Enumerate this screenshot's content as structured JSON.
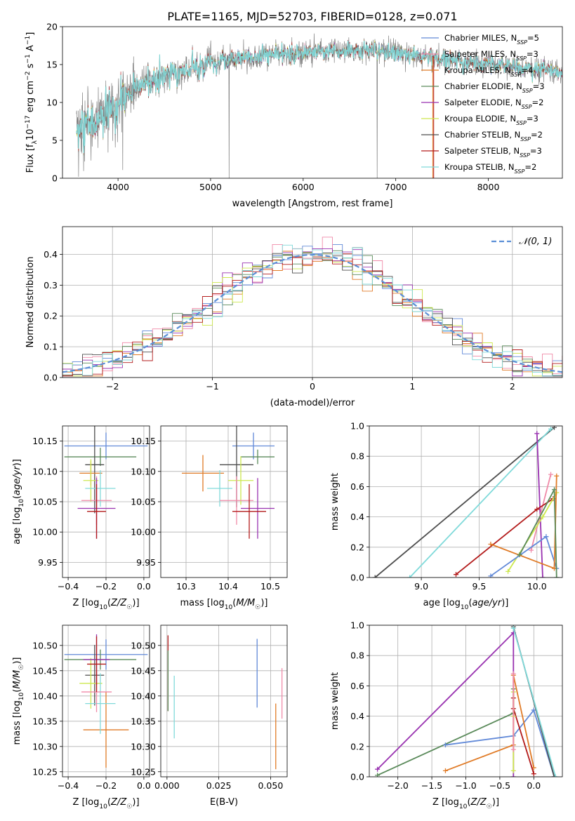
{
  "figure": {
    "title": "PLATE=1165, MJD=52703, FIBERID=0128, z=0.071"
  },
  "chart_data": [
    {
      "id": "spectrum",
      "type": "line",
      "title": "PLATE=1165, MJD=52703, FIBERID=0128, z=0.071",
      "xlabel": "wavelength [Angstrom, rest frame]",
      "ylabel": "Flux [f_λ 10^-17 erg cm^-2 s^-1 A^-1]",
      "xlim": [
        3400,
        8800
      ],
      "ylim": [
        0,
        20
      ],
      "xticks": [
        4000,
        5000,
        6000,
        7000,
        8000
      ],
      "yticks": [
        0,
        5,
        10,
        15,
        20
      ],
      "grid": false,
      "legend_position": "top-right",
      "continuum": {
        "x": [
          3550,
          3700,
          3850,
          3950,
          4100,
          4300,
          4500,
          4800,
          5000,
          5300,
          5600,
          6000,
          6400,
          6800,
          7200,
          7500,
          7800,
          8200,
          8500,
          8800
        ],
        "y": [
          6.5,
          7.5,
          8.0,
          9.0,
          11.0,
          12.5,
          13.5,
          14.5,
          15.2,
          15.8,
          16.2,
          16.6,
          16.8,
          16.7,
          16.2,
          15.8,
          15.3,
          14.8,
          14.4,
          14.0
        ]
      },
      "series": [
        {
          "label_parts": [
            "Chabrier MILES, N",
            "SSP",
            "=5"
          ],
          "color": "#6189d8"
        },
        {
          "label_parts": [
            "Salpeter MILES, N",
            "SSP",
            "=3"
          ],
          "color": "#f08aa8"
        },
        {
          "label_parts": [
            "Kroupa MILES, N",
            "SSP",
            "=4"
          ],
          "color": "#e07b27"
        },
        {
          "label_parts": [
            "Chabrier ELODIE, N",
            "SSP",
            "=3"
          ],
          "color": "#5a8a5a"
        },
        {
          "label_parts": [
            "Salpeter ELODIE, N",
            "SSP",
            "=2"
          ],
          "color": "#9932b0"
        },
        {
          "label_parts": [
            "Kroupa ELODIE, N",
            "SSP",
            "=3"
          ],
          "color": "#cde84f"
        },
        {
          "label_parts": [
            "Chabrier STELIB, N",
            "SSP",
            "=2"
          ],
          "color": "#4d4d4d"
        },
        {
          "label_parts": [
            "Salpeter STELIB, N",
            "SSP",
            "=3"
          ],
          "color": "#b31b1b"
        },
        {
          "label_parts": [
            "Kroupa STELIB, N",
            "SSP",
            "=2"
          ],
          "color": "#80dada"
        }
      ]
    },
    {
      "id": "residuals",
      "type": "line",
      "xlabel": "(data-model)/error",
      "ylabel": "Normed distribution",
      "xlim": [
        -2.5,
        2.5
      ],
      "ylim": [
        0,
        0.49
      ],
      "xticks": [
        -2,
        -1,
        0,
        1,
        2
      ],
      "yticks": [
        0.0,
        0.1,
        0.2,
        0.3,
        0.4
      ],
      "grid": true,
      "legend_position": "top-right",
      "legend_label": "𝒩(0, 1)",
      "reference_curve": {
        "name": "𝒩(0, 1)",
        "mean": 0,
        "sigma": 1,
        "color": "#5b8fd6"
      },
      "bin_width": 0.1
    },
    {
      "id": "age-vs-Z",
      "type": "scatter",
      "xlabel": "Z [log10(Z/Z☉)]",
      "ylabel": "age [log10(age/yr)]",
      "xlim": [
        -0.43,
        0.03
      ],
      "ylim": [
        9.925,
        10.175
      ],
      "xticks": [
        -0.4,
        -0.2,
        0.0
      ],
      "yticks": [
        9.95,
        10.0,
        10.05,
        10.1,
        10.15
      ],
      "grid": true,
      "points": [
        {
          "x": -0.2,
          "y": 10.142,
          "xerr": 0.22,
          "yerr": 0.022,
          "color": "#6189d8"
        },
        {
          "x": -0.23,
          "y": 10.124,
          "xerr": 0.19,
          "yerr": 0.015,
          "color": "#5a8a5a"
        },
        {
          "x": -0.26,
          "y": 10.111,
          "xerr": 0.05,
          "yerr": 0.08,
          "color": "#4d4d4d"
        },
        {
          "x": -0.28,
          "y": 10.097,
          "xerr": 0.06,
          "yerr": 0.02,
          "color": "#e07b27"
        },
        {
          "x": -0.28,
          "y": 10.085,
          "xerr": 0.04,
          "yerr": 0.035,
          "color": "#cde84f"
        },
        {
          "x": -0.23,
          "y": 10.072,
          "xerr": 0.08,
          "yerr": 0.03,
          "color": "#80dada"
        },
        {
          "x": -0.25,
          "y": 10.052,
          "xerr": 0.08,
          "yerr": 0.04,
          "color": "#f08aa8"
        },
        {
          "x": -0.25,
          "y": 10.039,
          "xerr": 0.1,
          "yerr": 0.05,
          "color": "#9932b0"
        },
        {
          "x": -0.25,
          "y": 10.034,
          "xerr": 0.05,
          "yerr": 0.045,
          "color": "#b31b1b"
        }
      ]
    },
    {
      "id": "age-vs-mass",
      "type": "scatter",
      "xlabel": "mass [log10(M/M☉)]",
      "ylabel": "",
      "xlim": [
        10.24,
        10.54
      ],
      "ylim": [
        9.925,
        10.175
      ],
      "xticks": [
        10.3,
        10.4,
        10.5
      ],
      "yticks": [
        9.95,
        10.0,
        10.05,
        10.1,
        10.15
      ],
      "grid": true,
      "points": [
        {
          "x": 10.46,
          "y": 10.142,
          "xerr": 0.05,
          "yerr": 0.022,
          "color": "#6189d8"
        },
        {
          "x": 10.47,
          "y": 10.124,
          "xerr": 0.04,
          "yerr": 0.012,
          "color": "#5a8a5a"
        },
        {
          "x": 10.42,
          "y": 10.111,
          "xerr": 0.04,
          "yerr": 0.07,
          "color": "#4d4d4d"
        },
        {
          "x": 10.34,
          "y": 10.097,
          "xerr": 0.05,
          "yerr": 0.03,
          "color": "#e07b27"
        },
        {
          "x": 10.43,
          "y": 10.085,
          "xerr": 0.03,
          "yerr": 0.04,
          "color": "#cde84f"
        },
        {
          "x": 10.38,
          "y": 10.072,
          "xerr": 0.03,
          "yerr": 0.03,
          "color": "#80dada"
        },
        {
          "x": 10.42,
          "y": 10.052,
          "xerr": 0.04,
          "yerr": 0.04,
          "color": "#f08aa8"
        },
        {
          "x": 10.47,
          "y": 10.039,
          "xerr": 0.04,
          "yerr": 0.05,
          "color": "#9932b0"
        },
        {
          "x": 10.45,
          "y": 10.034,
          "xerr": 0.04,
          "yerr": 0.045,
          "color": "#b31b1b"
        }
      ]
    },
    {
      "id": "mass-weight-vs-age",
      "type": "line",
      "xlabel": "age [log10(age/yr)]",
      "ylabel": "mass weight",
      "xlim": [
        8.55,
        10.22
      ],
      "ylim": [
        0,
        1
      ],
      "xticks": [
        9.0,
        9.5,
        10.0
      ],
      "yticks": [
        0.0,
        0.2,
        0.4,
        0.6,
        0.8,
        1.0
      ],
      "grid": true,
      "series": [
        {
          "color": "#4d4d4d",
          "x": [
            8.6,
            10.15
          ],
          "y": [
            0.0,
            0.99
          ]
        },
        {
          "color": "#80dada",
          "x": [
            8.9,
            10.12
          ],
          "y": [
            0.0,
            0.98
          ]
        },
        {
          "color": "#9932b0",
          "x": [
            10.0,
            10.05
          ],
          "y": [
            0.95,
            0.0
          ]
        },
        {
          "color": "#f08aa8",
          "x": [
            9.95,
            10.12
          ],
          "y": [
            0.18,
            0.68
          ]
        },
        {
          "color": "#b31b1b",
          "x": [
            9.3,
            10.0,
            10.14
          ],
          "y": [
            0.02,
            0.45,
            0.52
          ]
        },
        {
          "color": "#cde84f",
          "x": [
            9.75,
            10.05,
            10.17
          ],
          "y": [
            0.04,
            0.4,
            0.56
          ]
        },
        {
          "color": "#6189d8",
          "x": [
            9.6,
            10.08,
            10.17
          ],
          "y": [
            0.01,
            0.27,
            0.06
          ]
        },
        {
          "color": "#e07b27",
          "x": [
            9.6,
            10.15,
            10.17
          ],
          "y": [
            0.22,
            0.06,
            0.67
          ]
        },
        {
          "color": "#5a8a5a",
          "x": [
            9.85,
            10.15,
            10.17
          ],
          "y": [
            0.15,
            0.58,
            0.0
          ]
        }
      ]
    },
    {
      "id": "mass-vs-Z",
      "type": "scatter",
      "xlabel": "Z [log10(Z/Z☉)]",
      "ylabel": "mass [log10(M/M☉)]",
      "xlim": [
        -0.43,
        0.03
      ],
      "ylim": [
        10.24,
        10.54
      ],
      "xticks": [
        -0.4,
        -0.2,
        0.0
      ],
      "yticks": [
        10.25,
        10.3,
        10.35,
        10.4,
        10.45,
        10.5
      ],
      "grid": true,
      "points": [
        {
          "x": -0.2,
          "y": 10.482,
          "xerr": 0.22,
          "yerr": 0.03,
          "color": "#6189d8"
        },
        {
          "x": -0.23,
          "y": 10.472,
          "xerr": 0.19,
          "yerr": 0.02,
          "color": "#5a8a5a"
        },
        {
          "x": -0.26,
          "y": 10.441,
          "xerr": 0.05,
          "yerr": 0.06,
          "color": "#4d4d4d"
        },
        {
          "x": -0.2,
          "y": 10.333,
          "xerr": 0.12,
          "yerr": 0.075,
          "color": "#e07b27"
        },
        {
          "x": -0.28,
          "y": 10.425,
          "xerr": 0.06,
          "yerr": 0.05,
          "color": "#cde84f"
        },
        {
          "x": -0.23,
          "y": 10.385,
          "xerr": 0.08,
          "yerr": 0.06,
          "color": "#80dada"
        },
        {
          "x": -0.25,
          "y": 10.408,
          "xerr": 0.08,
          "yerr": 0.04,
          "color": "#f08aa8"
        },
        {
          "x": -0.25,
          "y": 10.472,
          "xerr": 0.07,
          "yerr": 0.05,
          "color": "#9932b0"
        },
        {
          "x": -0.25,
          "y": 10.463,
          "xerr": 0.05,
          "yerr": 0.055,
          "color": "#b31b1b"
        }
      ]
    },
    {
      "id": "mass-vs-EBV",
      "type": "scatter",
      "xlabel": "E(B-V)",
      "ylabel": "",
      "xlim": [
        -0.003,
        0.058
      ],
      "ylim": [
        10.24,
        10.54
      ],
      "xticks": [
        0.0,
        0.025,
        0.05
      ],
      "yticks": [
        10.25,
        10.3,
        10.35,
        10.4,
        10.45,
        10.5
      ],
      "grid": true,
      "points": [
        {
          "x": 0.0435,
          "y": 10.445,
          "xerr": 0,
          "yerr": 0.068,
          "color": "#6189d8"
        },
        {
          "x": 0.0005,
          "y": 10.445,
          "xerr": 0,
          "yerr": 0.075,
          "color": "#b31b1b"
        },
        {
          "x": 0.0005,
          "y": 10.43,
          "xerr": 0,
          "yerr": 0.06,
          "color": "#5a8a5a"
        },
        {
          "x": 0.0035,
          "y": 10.378,
          "xerr": 0,
          "yerr": 0.062,
          "color": "#80dada"
        },
        {
          "x": 0.0525,
          "y": 10.32,
          "xerr": 0,
          "yerr": 0.065,
          "color": "#e07b27"
        },
        {
          "x": 0.0555,
          "y": 10.405,
          "xerr": 0,
          "yerr": 0.05,
          "color": "#f08aa8"
        }
      ]
    },
    {
      "id": "mass-weight-vs-Z",
      "type": "line",
      "xlabel": "Z [log10(Z/Z☉)]",
      "ylabel": "mass weight",
      "xlim": [
        -2.42,
        0.42
      ],
      "ylim": [
        0,
        1
      ],
      "xticks": [
        -2.0,
        -1.5,
        -1.0,
        -0.5,
        0.0
      ],
      "yticks": [
        0.0,
        0.2,
        0.4,
        0.6,
        0.8,
        1.0
      ],
      "grid": true,
      "series": [
        {
          "color": "#9932b0",
          "x": [
            -2.3,
            -0.3,
            -0.3
          ],
          "y": [
            0.05,
            0.95,
            0.0
          ]
        },
        {
          "color": "#5a8a5a",
          "x": [
            -2.3,
            -0.3,
            -0.3
          ],
          "y": [
            0.01,
            0.42,
            0.58
          ]
        },
        {
          "color": "#6189d8",
          "x": [
            -1.3,
            -0.3,
            0.0,
            0.3
          ],
          "y": [
            0.21,
            0.27,
            0.44,
            0.0
          ]
        },
        {
          "color": "#e07b27",
          "x": [
            -1.3,
            -0.3,
            -0.3,
            0.0
          ],
          "y": [
            0.04,
            0.21,
            0.67,
            0.06
          ]
        },
        {
          "color": "#b31b1b",
          "x": [
            -0.3,
            -0.3,
            0.0
          ],
          "y": [
            0.52,
            0.45,
            0.02
          ]
        },
        {
          "color": "#cde84f",
          "x": [
            -0.3,
            -0.3,
            -0.3
          ],
          "y": [
            0.04,
            0.4,
            0.56
          ]
        },
        {
          "color": "#f08aa8",
          "x": [
            -0.3,
            -0.3
          ],
          "y": [
            0.18,
            0.68
          ]
        },
        {
          "color": "#4d4d4d",
          "x": [
            -0.3,
            0.3
          ],
          "y": [
            0.99,
            0.0
          ]
        },
        {
          "color": "#80dada",
          "x": [
            -0.3,
            0.32
          ],
          "y": [
            0.98,
            0.0
          ]
        }
      ]
    }
  ]
}
